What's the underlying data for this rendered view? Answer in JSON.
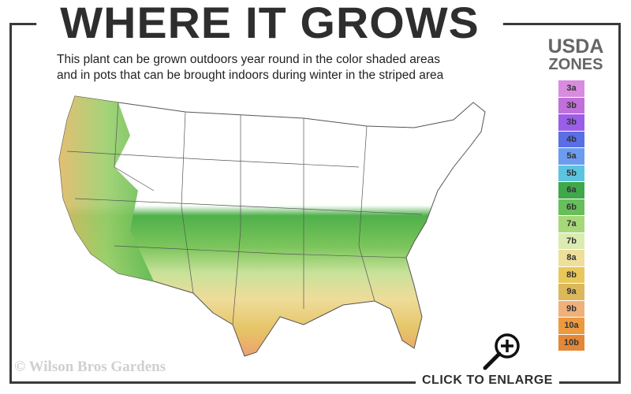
{
  "header": {
    "title": "WHERE IT GROWS",
    "subtitle_line1": "This plant can be grown outdoors year round in the color shaded areas",
    "subtitle_line2": "and in pots that can be brought indoors during winter in the striped area"
  },
  "legend": {
    "title_line1": "USDA",
    "title_line2": "ZONES",
    "zones": [
      {
        "label": "3a",
        "color": "#d98be0"
      },
      {
        "label": "3b",
        "color": "#c070d8"
      },
      {
        "label": "3b",
        "color": "#9a5ee8"
      },
      {
        "label": "4b",
        "color": "#5a6ee6"
      },
      {
        "label": "5a",
        "color": "#6b9cf0"
      },
      {
        "label": "5b",
        "color": "#5cc4e0"
      },
      {
        "label": "6a",
        "color": "#3fa84a"
      },
      {
        "label": "6b",
        "color": "#67be5a"
      },
      {
        "label": "7a",
        "color": "#a6d87a"
      },
      {
        "label": "7b",
        "color": "#dcebb0"
      },
      {
        "label": "8a",
        "color": "#eedf9a"
      },
      {
        "label": "8b",
        "color": "#e8c85a"
      },
      {
        "label": "9a",
        "color": "#dcb85a"
      },
      {
        "label": "9b",
        "color": "#f0b07a"
      },
      {
        "label": "10a",
        "color": "#ec9a40"
      },
      {
        "label": "10b",
        "color": "#e28836"
      }
    ]
  },
  "footer": {
    "copyright": "© Wilson Bros Gardens",
    "enlarge_label": "CLICK TO ENLARGE"
  },
  "icons": {
    "enlarge": "magnifier-plus-icon"
  }
}
